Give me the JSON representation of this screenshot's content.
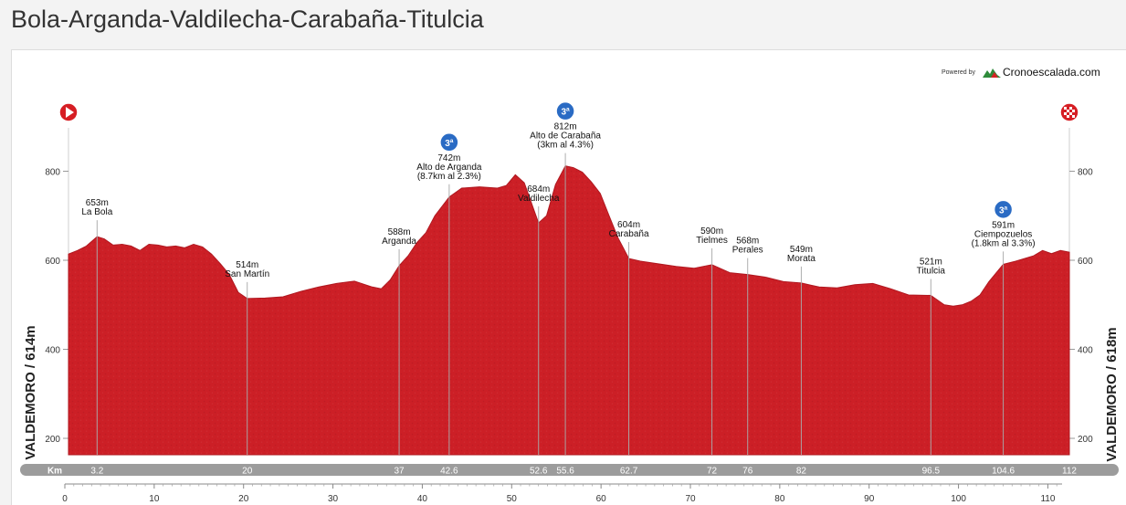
{
  "page": {
    "title": "Bola-Arganda-Valdilecha-Carabaña-Titulcia"
  },
  "branding": {
    "powered_by": "Powered by",
    "name": "Cronoescalada.com"
  },
  "colors": {
    "profile": "#cc1f26",
    "profile_edge": "#b01820",
    "kmbar": "#9c9c9c",
    "marker": "#d61e24",
    "climb": "#2a6bc4"
  },
  "chart_data": {
    "type": "area",
    "title": "Bola-Arganda-Valdilecha-Carabaña-Titulcia",
    "xlabel": "",
    "ylabel_left": "VALDEMORO / 614m",
    "ylabel_right": "VALDEMORO / 618m",
    "xlim": [
      0,
      112
    ],
    "ylim": [
      160,
      840
    ],
    "y_ticks": [
      200,
      400,
      600,
      800
    ],
    "x_ticks": [
      0,
      10,
      20,
      30,
      40,
      50,
      60,
      70,
      80,
      90,
      100,
      110
    ],
    "km_bar_label": "Km",
    "km_marks": [
      "3.2",
      "20",
      "37",
      "42.6",
      "52.6",
      "55.6",
      "62.7",
      "72",
      "76",
      "82",
      "96.5",
      "104.6",
      "112"
    ],
    "profile": [
      [
        0,
        614
      ],
      [
        1,
        622
      ],
      [
        2,
        632
      ],
      [
        3.2,
        653
      ],
      [
        4,
        648
      ],
      [
        5,
        634
      ],
      [
        6,
        636
      ],
      [
        7,
        632
      ],
      [
        8,
        622
      ],
      [
        9,
        636
      ],
      [
        10,
        634
      ],
      [
        11,
        630
      ],
      [
        12,
        632
      ],
      [
        13,
        628
      ],
      [
        14,
        636
      ],
      [
        15,
        630
      ],
      [
        16,
        614
      ],
      [
        17,
        592
      ],
      [
        18,
        568
      ],
      [
        19,
        528
      ],
      [
        20,
        514
      ],
      [
        22,
        515
      ],
      [
        24,
        518
      ],
      [
        26,
        530
      ],
      [
        28,
        540
      ],
      [
        30,
        548
      ],
      [
        32,
        553
      ],
      [
        34,
        540
      ],
      [
        35,
        536
      ],
      [
        36,
        556
      ],
      [
        37,
        588
      ],
      [
        38,
        610
      ],
      [
        39,
        640
      ],
      [
        40,
        662
      ],
      [
        41,
        700
      ],
      [
        42.6,
        742
      ],
      [
        44,
        762
      ],
      [
        46,
        765
      ],
      [
        48,
        762
      ],
      [
        49,
        768
      ],
      [
        50,
        792
      ],
      [
        51,
        774
      ],
      [
        52.6,
        684
      ],
      [
        53.5,
        700
      ],
      [
        54.5,
        770
      ],
      [
        55.6,
        812
      ],
      [
        56.5,
        808
      ],
      [
        57.5,
        798
      ],
      [
        58.5,
        776
      ],
      [
        59.5,
        750
      ],
      [
        60.5,
        700
      ],
      [
        61.5,
        650
      ],
      [
        62.7,
        604
      ],
      [
        64,
        598
      ],
      [
        66,
        592
      ],
      [
        68,
        586
      ],
      [
        70,
        582
      ],
      [
        72,
        590
      ],
      [
        74,
        572
      ],
      [
        76,
        568
      ],
      [
        78,
        562
      ],
      [
        80,
        552
      ],
      [
        82,
        549
      ],
      [
        84,
        540
      ],
      [
        86,
        538
      ],
      [
        88,
        545
      ],
      [
        90,
        548
      ],
      [
        92,
        536
      ],
      [
        94,
        522
      ],
      [
        96.5,
        521
      ],
      [
        98,
        500
      ],
      [
        99,
        497
      ],
      [
        100,
        500
      ],
      [
        101,
        508
      ],
      [
        102,
        522
      ],
      [
        103,
        552
      ],
      [
        104.6,
        591
      ],
      [
        106,
        598
      ],
      [
        108,
        610
      ],
      [
        109,
        622
      ],
      [
        110,
        615
      ],
      [
        111,
        622
      ],
      [
        112,
        618
      ]
    ],
    "annotations": [
      {
        "km": 3.2,
        "alt": "653m",
        "name": "La Bola",
        "detail": "",
        "climb": false
      },
      {
        "km": 20,
        "alt": "514m",
        "name": "San Martín",
        "detail": "",
        "climb": false
      },
      {
        "km": 37,
        "alt": "588m",
        "name": "Arganda",
        "detail": "",
        "climb": false
      },
      {
        "km": 42.6,
        "alt": "742m",
        "name": "Alto de Arganda",
        "detail": "(8.7km al 2.3%)",
        "climb": true
      },
      {
        "km": 52.6,
        "alt": "684m",
        "name": "Valdilecha",
        "detail": "",
        "climb": false
      },
      {
        "km": 55.6,
        "alt": "812m",
        "name": "Alto de Carabaña",
        "detail": "(3km al 4.3%)",
        "climb": true
      },
      {
        "km": 62.7,
        "alt": "604m",
        "name": "Carabaña",
        "detail": "",
        "climb": false
      },
      {
        "km": 72,
        "alt": "590m",
        "name": "Tielmes",
        "detail": "",
        "climb": false
      },
      {
        "km": 76,
        "alt": "568m",
        "name": "Perales",
        "detail": "",
        "climb": false
      },
      {
        "km": 82,
        "alt": "549m",
        "name": "Morata",
        "detail": "",
        "climb": false
      },
      {
        "km": 96.5,
        "alt": "521m",
        "name": "Titulcia",
        "detail": "",
        "climb": false
      },
      {
        "km": 104.6,
        "alt": "591m",
        "name": "Ciempozuelos",
        "detail": "(1.8km al 3.3%)",
        "climb": true
      }
    ],
    "climb_badge": "3ª"
  }
}
